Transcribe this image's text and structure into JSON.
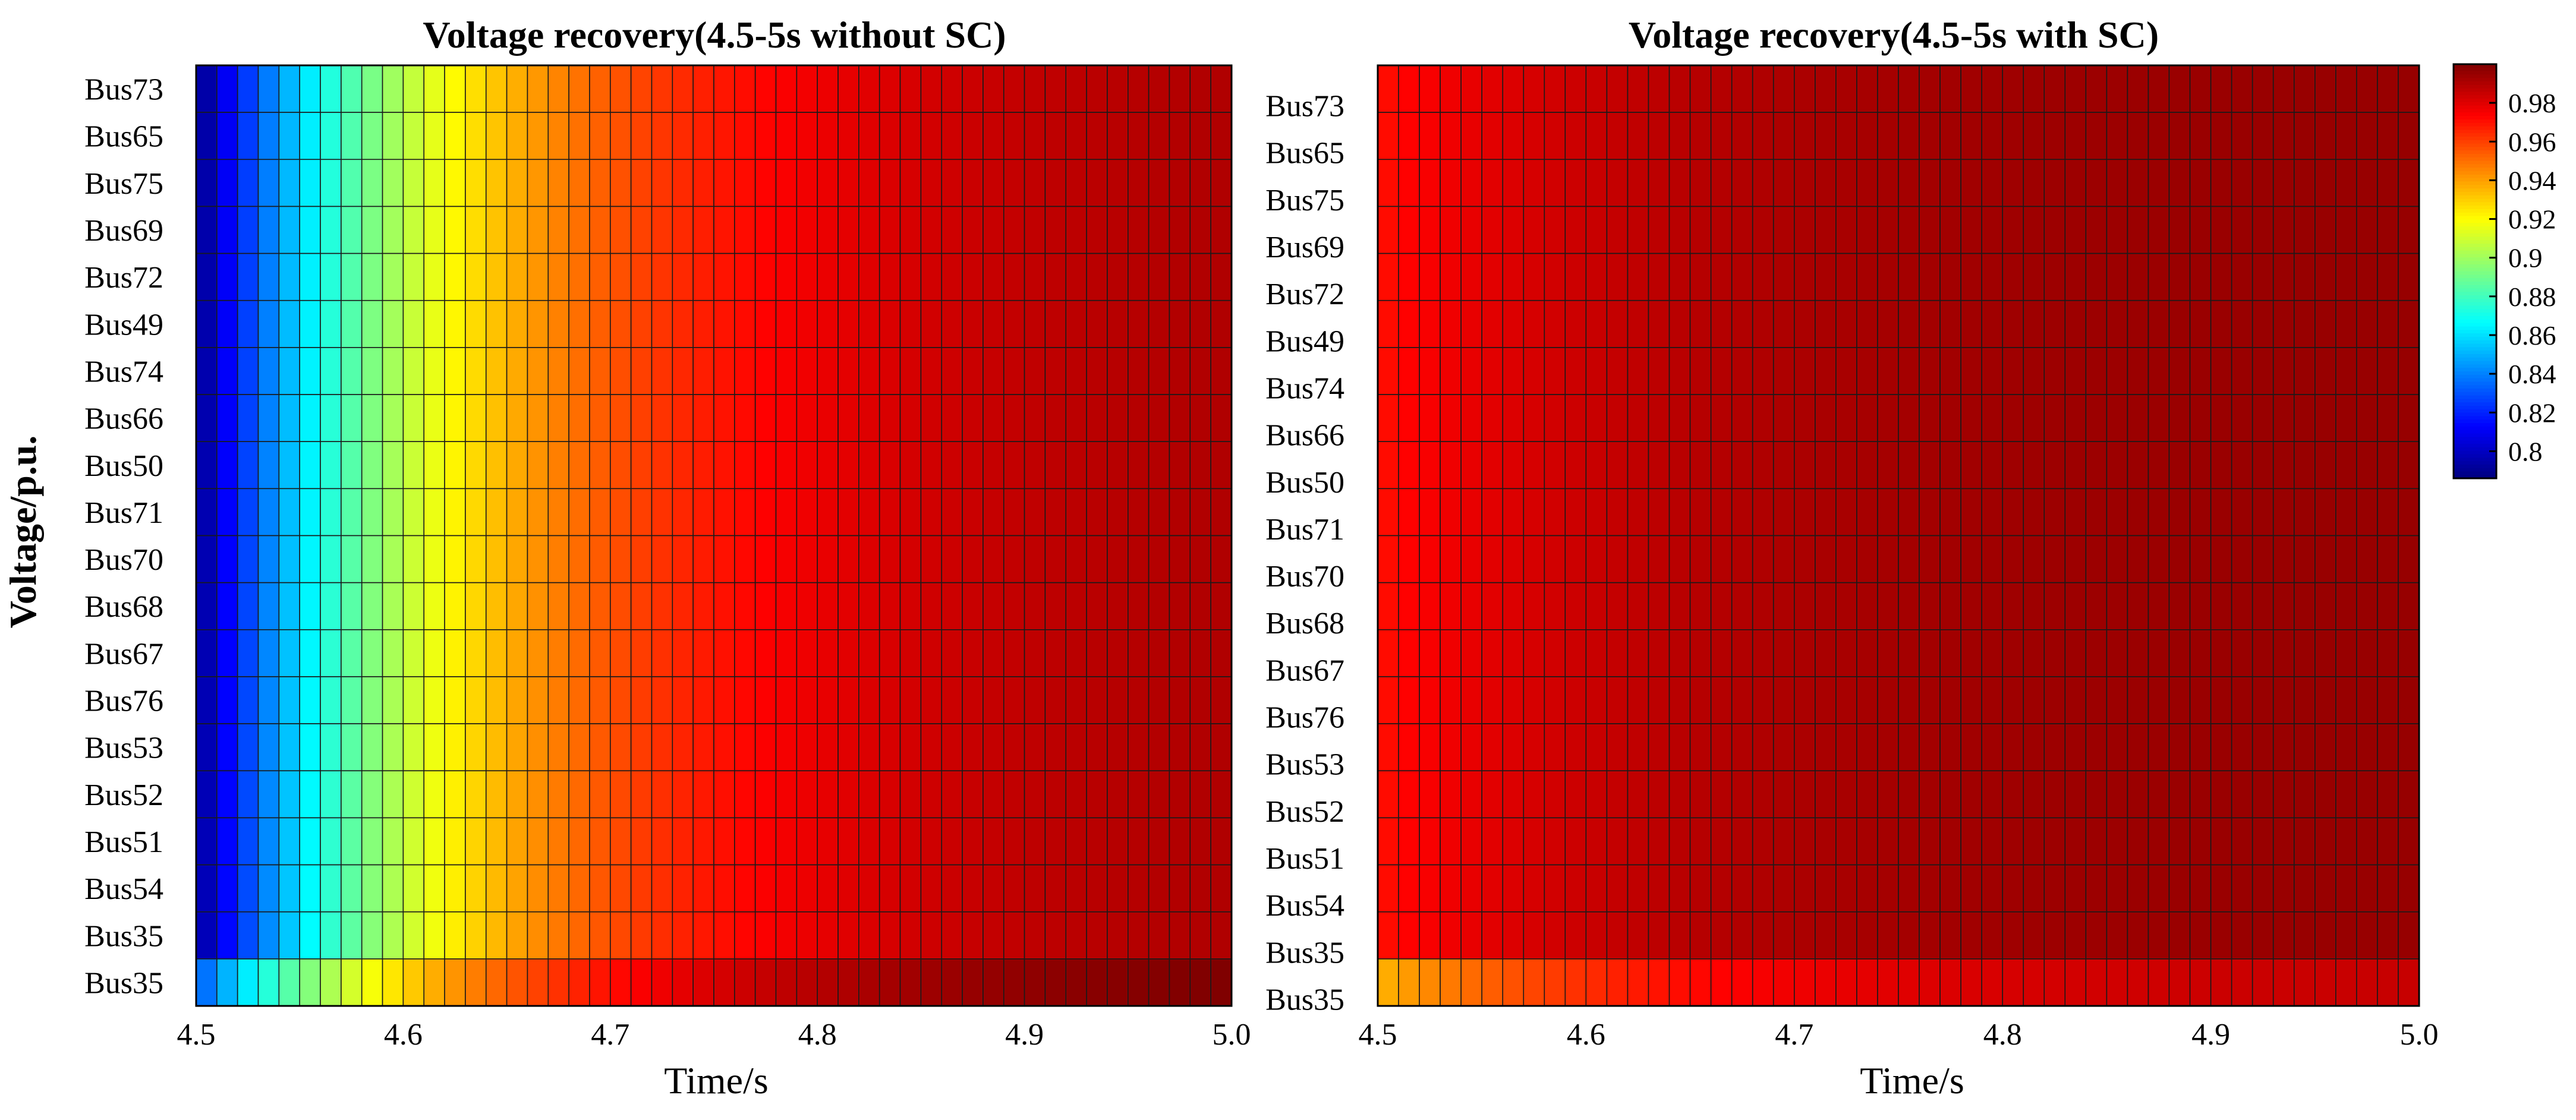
{
  "chart_data": [
    {
      "type": "heatmap",
      "title": "Voltage recovery(4.5-5s without SC)",
      "xlabel": "Time/s",
      "ylabel": "Voltage/p.u.",
      "xlim": [
        4.5,
        5.0
      ],
      "x_ticks": [
        "4.5",
        "4.6",
        "4.7",
        "4.8",
        "4.9",
        "5.0"
      ],
      "rows": [
        "Bus73",
        "Bus65",
        "Bus75",
        "Bus69",
        "Bus72",
        "Bus49",
        "Bus74",
        "Bus66",
        "Bus50",
        "Bus71",
        "Bus70",
        "Bus68",
        "Bus67",
        "Bus76",
        "Bus53",
        "Bus52",
        "Bus51",
        "Bus54",
        "Bus35",
        "Bus35"
      ],
      "time_steps": 50,
      "value_profile": {
        "start": 0.786,
        "end": 0.99,
        "shape": "rapid rise, saturating near 0.99"
      },
      "last_row_profile": {
        "start": 0.83,
        "end": 1.0
      }
    },
    {
      "type": "heatmap",
      "title": "Voltage recovery(4.5-5s with SC)",
      "xlabel": "Time/s",
      "xlim": [
        4.5,
        5.0
      ],
      "x_ticks": [
        "4.5",
        "4.6",
        "4.7",
        "4.8",
        "4.9",
        "5.0"
      ],
      "rows": [
        "Bus73",
        "Bus65",
        "Bus75",
        "Bus69",
        "Bus72",
        "Bus49",
        "Bus74",
        "Bus66",
        "Bus50",
        "Bus71",
        "Bus70",
        "Bus68",
        "Bus67",
        "Bus76",
        "Bus53",
        "Bus52",
        "Bus51",
        "Bus54",
        "Bus35",
        "Bus35"
      ],
      "time_steps": 50,
      "value_profile": {
        "start": 0.97,
        "end": 0.995,
        "shape": "nearly flat, slight rise"
      },
      "last_row_profile": {
        "start": 0.935,
        "end": 0.985
      }
    }
  ],
  "colorbar": {
    "colormap": "jet",
    "vmin": 0.786,
    "vmax": 1.0,
    "ticks": [
      "0.98",
      "0.96",
      "0.94",
      "0.92",
      "0.9",
      "0.88",
      "0.86",
      "0.84",
      "0.82",
      "0.8"
    ]
  }
}
